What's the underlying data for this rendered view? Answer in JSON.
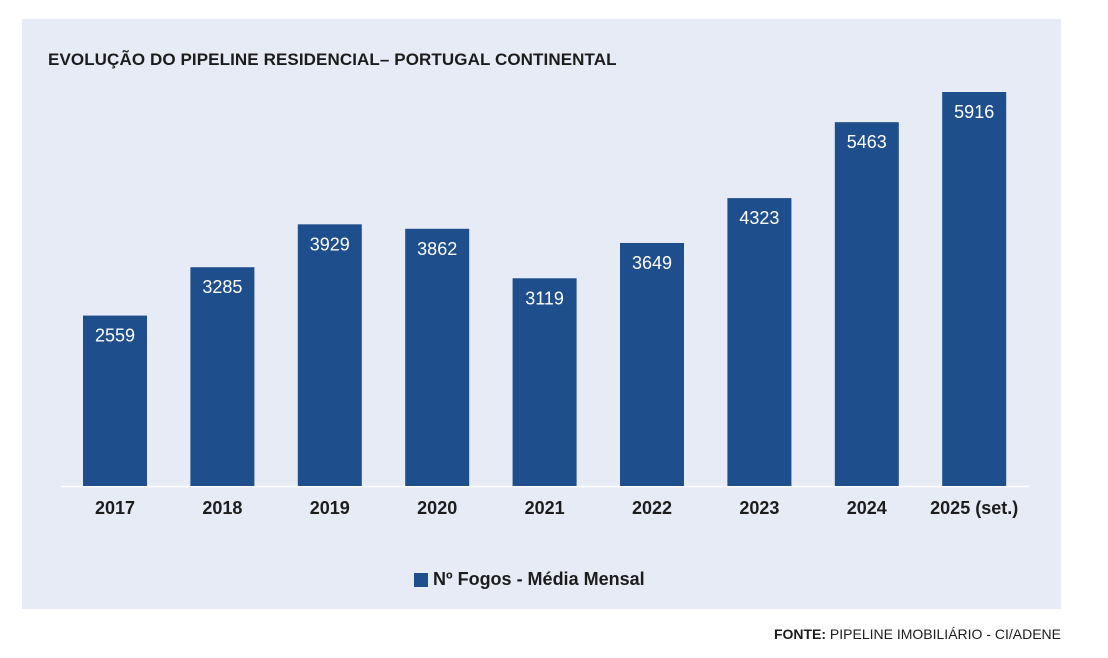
{
  "chart_data": {
    "type": "bar",
    "title": "EVOLUÇÃO DO PIPELINE RESIDENCIAL– PORTUGAL CONTINENTAL",
    "categories": [
      "2017",
      "2018",
      "2019",
      "2020",
      "2021",
      "2022",
      "2023",
      "2024",
      "2025 (set.)"
    ],
    "series": [
      {
        "name": "Nº Fogos - Média Mensal",
        "values": [
          2559,
          3285,
          3929,
          3862,
          3119,
          3649,
          4323,
          5463,
          5916
        ]
      }
    ],
    "xlabel": "",
    "ylabel": "",
    "ylim": [
      0,
      6000
    ],
    "grid": false,
    "legend": "bottom-center",
    "bar_color": "#1f4e8c"
  },
  "source": {
    "label": "FONTE:",
    "text": " PIPELINE IMOBILIÁRIO - CI/ADENE"
  },
  "colors": {
    "panel_background": "#e7ebf5",
    "bar": "#1f4e8c"
  }
}
